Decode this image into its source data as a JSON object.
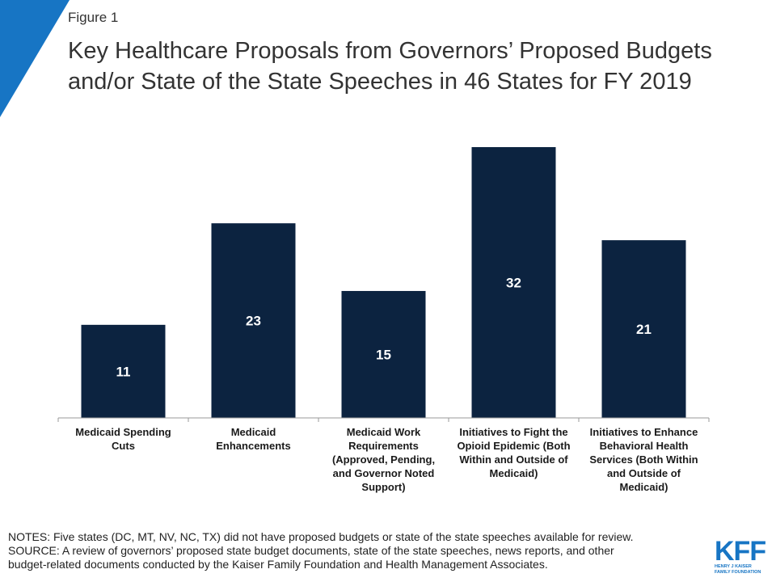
{
  "figure_label": "Figure 1",
  "title_lines": [
    "Key Healthcare Proposals from Governors’ Proposed Budgets",
    "and/or State of the State Speeches in 46 States for FY 2019"
  ],
  "colors": {
    "bar": "#0c2340",
    "accent": "#1775c4",
    "axis": "#999999"
  },
  "chart_data": {
    "type": "bar",
    "title": "Key Healthcare Proposals from Governors’ Proposed Budgets and/or State of the State Speeches in 46 States for FY 2019",
    "categories": [
      "Medicaid Spending Cuts",
      "Medicaid Enhancements",
      "Medicaid Work Requirements (Approved, Pending, and Governor Noted Support)",
      "Initiatives to Fight the Opioid Epidemic (Both Within and Outside of Medicaid)",
      "Initiatives to Enhance Behavioral Health Services (Both Within and Outside of Medicaid)"
    ],
    "category_label_lines": [
      [
        "Medicaid Spending",
        "Cuts"
      ],
      [
        "Medicaid",
        "Enhancements"
      ],
      [
        "Medicaid Work",
        "Requirements",
        "(Approved, Pending,",
        "and Governor Noted",
        "Support)"
      ],
      [
        "Initiatives to Fight the",
        "Opioid Epidemic (Both",
        "Within and Outside of",
        "Medicaid)"
      ],
      [
        "Initiatives to Enhance",
        "Behavioral Health",
        "Services (Both Within",
        "and Outside of",
        "Medicaid)"
      ]
    ],
    "values": [
      11,
      23,
      15,
      32,
      21
    ],
    "xlabel": "",
    "ylabel": "",
    "ylim": [
      0,
      32
    ],
    "grid": false,
    "data_labels": true
  },
  "notes": {
    "line1": "NOTES: Five states (DC, MT, NV, NC, TX) did not have proposed budgets or state of the state speeches available for review.",
    "line2": "SOURCE: A review of governors’ proposed state budget documents, state of the state speeches, news reports, and other",
    "line3": "budget-related documents conducted by the Kaiser Family Foundation and Health Management Associates."
  },
  "logo": {
    "mark": "KFF",
    "sub_lines": [
      "HENRY J KAISER",
      "FAMILY FOUNDATION"
    ]
  }
}
